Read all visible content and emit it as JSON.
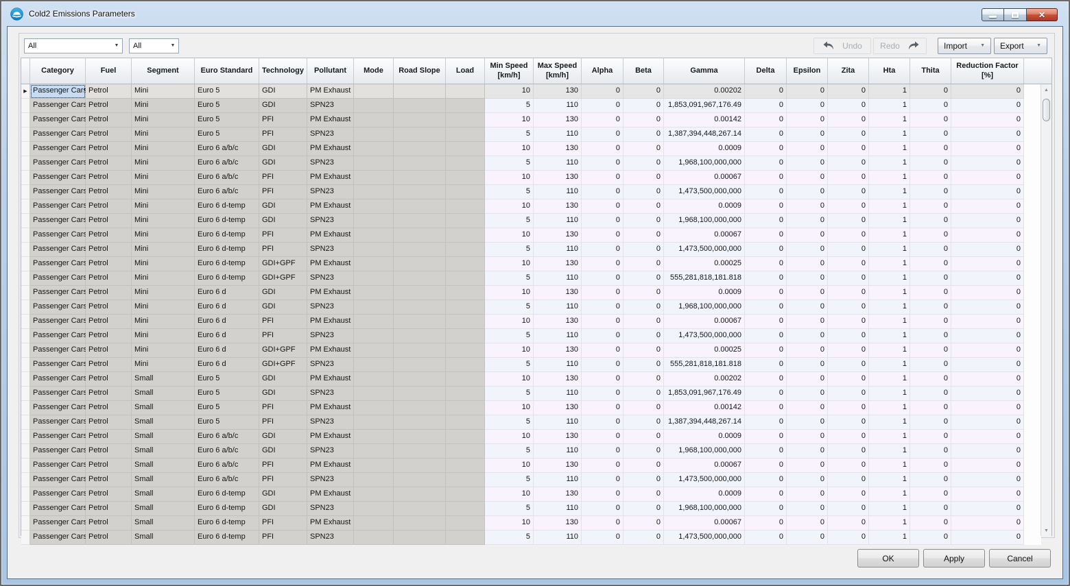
{
  "window": {
    "title": "Cold2 Emissions Parameters"
  },
  "toolbar": {
    "filter1_value": "All",
    "filter2_value": "All",
    "undo_label": "Undo",
    "redo_label": "Redo",
    "import_label": "Import",
    "export_label": "Export"
  },
  "grid": {
    "headers": [
      "Category",
      "Fuel",
      "Segment",
      "Euro Standard",
      "Technology",
      "Pollutant",
      "Mode",
      "Road Slope",
      "Load",
      "Min Speed\n[km/h]",
      "Max Speed\n[km/h]",
      "Alpha",
      "Beta",
      "Gamma",
      "Delta",
      "Epsilon",
      "Zita",
      "Hta",
      "Thita",
      "Reduction Factor\n[%]"
    ],
    "current_row_index": 0,
    "selected_cell": {
      "row": 0,
      "col": 0
    },
    "rows": [
      [
        "Passenger Cars",
        "Petrol",
        "Mini",
        "Euro 5",
        "GDI",
        "PM Exhaust",
        "",
        "",
        "",
        "10",
        "130",
        "0",
        "0",
        "0.00202",
        "0",
        "0",
        "0",
        "1",
        "0",
        "0"
      ],
      [
        "Passenger Cars",
        "Petrol",
        "Mini",
        "Euro 5",
        "GDI",
        "SPN23",
        "",
        "",
        "",
        "5",
        "110",
        "0",
        "0",
        "1,853,091,967,176.49",
        "0",
        "0",
        "0",
        "1",
        "0",
        "0"
      ],
      [
        "Passenger Cars",
        "Petrol",
        "Mini",
        "Euro 5",
        "PFI",
        "PM Exhaust",
        "",
        "",
        "",
        "10",
        "130",
        "0",
        "0",
        "0.00142",
        "0",
        "0",
        "0",
        "1",
        "0",
        "0"
      ],
      [
        "Passenger Cars",
        "Petrol",
        "Mini",
        "Euro 5",
        "PFI",
        "SPN23",
        "",
        "",
        "",
        "5",
        "110",
        "0",
        "0",
        "1,387,394,448,267.14",
        "0",
        "0",
        "0",
        "1",
        "0",
        "0"
      ],
      [
        "Passenger Cars",
        "Petrol",
        "Mini",
        "Euro 6 a/b/c",
        "GDI",
        "PM Exhaust",
        "",
        "",
        "",
        "10",
        "130",
        "0",
        "0",
        "0.0009",
        "0",
        "0",
        "0",
        "1",
        "0",
        "0"
      ],
      [
        "Passenger Cars",
        "Petrol",
        "Mini",
        "Euro 6 a/b/c",
        "GDI",
        "SPN23",
        "",
        "",
        "",
        "5",
        "110",
        "0",
        "0",
        "1,968,100,000,000",
        "0",
        "0",
        "0",
        "1",
        "0",
        "0"
      ],
      [
        "Passenger Cars",
        "Petrol",
        "Mini",
        "Euro 6 a/b/c",
        "PFI",
        "PM Exhaust",
        "",
        "",
        "",
        "10",
        "130",
        "0",
        "0",
        "0.00067",
        "0",
        "0",
        "0",
        "1",
        "0",
        "0"
      ],
      [
        "Passenger Cars",
        "Petrol",
        "Mini",
        "Euro 6 a/b/c",
        "PFI",
        "SPN23",
        "",
        "",
        "",
        "5",
        "110",
        "0",
        "0",
        "1,473,500,000,000",
        "0",
        "0",
        "0",
        "1",
        "0",
        "0"
      ],
      [
        "Passenger Cars",
        "Petrol",
        "Mini",
        "Euro 6 d-temp",
        "GDI",
        "PM Exhaust",
        "",
        "",
        "",
        "10",
        "130",
        "0",
        "0",
        "0.0009",
        "0",
        "0",
        "0",
        "1",
        "0",
        "0"
      ],
      [
        "Passenger Cars",
        "Petrol",
        "Mini",
        "Euro 6 d-temp",
        "GDI",
        "SPN23",
        "",
        "",
        "",
        "5",
        "110",
        "0",
        "0",
        "1,968,100,000,000",
        "0",
        "0",
        "0",
        "1",
        "0",
        "0"
      ],
      [
        "Passenger Cars",
        "Petrol",
        "Mini",
        "Euro 6 d-temp",
        "PFI",
        "PM Exhaust",
        "",
        "",
        "",
        "10",
        "130",
        "0",
        "0",
        "0.00067",
        "0",
        "0",
        "0",
        "1",
        "0",
        "0"
      ],
      [
        "Passenger Cars",
        "Petrol",
        "Mini",
        "Euro 6 d-temp",
        "PFI",
        "SPN23",
        "",
        "",
        "",
        "5",
        "110",
        "0",
        "0",
        "1,473,500,000,000",
        "0",
        "0",
        "0",
        "1",
        "0",
        "0"
      ],
      [
        "Passenger Cars",
        "Petrol",
        "Mini",
        "Euro 6 d-temp",
        "GDI+GPF",
        "PM Exhaust",
        "",
        "",
        "",
        "10",
        "130",
        "0",
        "0",
        "0.00025",
        "0",
        "0",
        "0",
        "1",
        "0",
        "0"
      ],
      [
        "Passenger Cars",
        "Petrol",
        "Mini",
        "Euro 6 d-temp",
        "GDI+GPF",
        "SPN23",
        "",
        "",
        "",
        "5",
        "110",
        "0",
        "0",
        "555,281,818,181.818",
        "0",
        "0",
        "0",
        "1",
        "0",
        "0"
      ],
      [
        "Passenger Cars",
        "Petrol",
        "Mini",
        "Euro 6 d",
        "GDI",
        "PM Exhaust",
        "",
        "",
        "",
        "10",
        "130",
        "0",
        "0",
        "0.0009",
        "0",
        "0",
        "0",
        "1",
        "0",
        "0"
      ],
      [
        "Passenger Cars",
        "Petrol",
        "Mini",
        "Euro 6 d",
        "GDI",
        "SPN23",
        "",
        "",
        "",
        "5",
        "110",
        "0",
        "0",
        "1,968,100,000,000",
        "0",
        "0",
        "0",
        "1",
        "0",
        "0"
      ],
      [
        "Passenger Cars",
        "Petrol",
        "Mini",
        "Euro 6 d",
        "PFI",
        "PM Exhaust",
        "",
        "",
        "",
        "10",
        "130",
        "0",
        "0",
        "0.00067",
        "0",
        "0",
        "0",
        "1",
        "0",
        "0"
      ],
      [
        "Passenger Cars",
        "Petrol",
        "Mini",
        "Euro 6 d",
        "PFI",
        "SPN23",
        "",
        "",
        "",
        "5",
        "110",
        "0",
        "0",
        "1,473,500,000,000",
        "0",
        "0",
        "0",
        "1",
        "0",
        "0"
      ],
      [
        "Passenger Cars",
        "Petrol",
        "Mini",
        "Euro 6 d",
        "GDI+GPF",
        "PM Exhaust",
        "",
        "",
        "",
        "10",
        "130",
        "0",
        "0",
        "0.00025",
        "0",
        "0",
        "0",
        "1",
        "0",
        "0"
      ],
      [
        "Passenger Cars",
        "Petrol",
        "Mini",
        "Euro 6 d",
        "GDI+GPF",
        "SPN23",
        "",
        "",
        "",
        "5",
        "110",
        "0",
        "0",
        "555,281,818,181.818",
        "0",
        "0",
        "0",
        "1",
        "0",
        "0"
      ],
      [
        "Passenger Cars",
        "Petrol",
        "Small",
        "Euro 5",
        "GDI",
        "PM Exhaust",
        "",
        "",
        "",
        "10",
        "130",
        "0",
        "0",
        "0.00202",
        "0",
        "0",
        "0",
        "1",
        "0",
        "0"
      ],
      [
        "Passenger Cars",
        "Petrol",
        "Small",
        "Euro 5",
        "GDI",
        "SPN23",
        "",
        "",
        "",
        "5",
        "110",
        "0",
        "0",
        "1,853,091,967,176.49",
        "0",
        "0",
        "0",
        "1",
        "0",
        "0"
      ],
      [
        "Passenger Cars",
        "Petrol",
        "Small",
        "Euro 5",
        "PFI",
        "PM Exhaust",
        "",
        "",
        "",
        "10",
        "130",
        "0",
        "0",
        "0.00142",
        "0",
        "0",
        "0",
        "1",
        "0",
        "0"
      ],
      [
        "Passenger Cars",
        "Petrol",
        "Small",
        "Euro 5",
        "PFI",
        "SPN23",
        "",
        "",
        "",
        "5",
        "110",
        "0",
        "0",
        "1,387,394,448,267.14",
        "0",
        "0",
        "0",
        "1",
        "0",
        "0"
      ],
      [
        "Passenger Cars",
        "Petrol",
        "Small",
        "Euro 6 a/b/c",
        "GDI",
        "PM Exhaust",
        "",
        "",
        "",
        "10",
        "130",
        "0",
        "0",
        "0.0009",
        "0",
        "0",
        "0",
        "1",
        "0",
        "0"
      ],
      [
        "Passenger Cars",
        "Petrol",
        "Small",
        "Euro 6 a/b/c",
        "GDI",
        "SPN23",
        "",
        "",
        "",
        "5",
        "110",
        "0",
        "0",
        "1,968,100,000,000",
        "0",
        "0",
        "0",
        "1",
        "0",
        "0"
      ],
      [
        "Passenger Cars",
        "Petrol",
        "Small",
        "Euro 6 a/b/c",
        "PFI",
        "PM Exhaust",
        "",
        "",
        "",
        "10",
        "130",
        "0",
        "0",
        "0.00067",
        "0",
        "0",
        "0",
        "1",
        "0",
        "0"
      ],
      [
        "Passenger Cars",
        "Petrol",
        "Small",
        "Euro 6 a/b/c",
        "PFI",
        "SPN23",
        "",
        "",
        "",
        "5",
        "110",
        "0",
        "0",
        "1,473,500,000,000",
        "0",
        "0",
        "0",
        "1",
        "0",
        "0"
      ],
      [
        "Passenger Cars",
        "Petrol",
        "Small",
        "Euro 6 d-temp",
        "GDI",
        "PM Exhaust",
        "",
        "",
        "",
        "10",
        "130",
        "0",
        "0",
        "0.0009",
        "0",
        "0",
        "0",
        "1",
        "0",
        "0"
      ],
      [
        "Passenger Cars",
        "Petrol",
        "Small",
        "Euro 6 d-temp",
        "GDI",
        "SPN23",
        "",
        "",
        "",
        "5",
        "110",
        "0",
        "0",
        "1,968,100,000,000",
        "0",
        "0",
        "0",
        "1",
        "0",
        "0"
      ],
      [
        "Passenger Cars",
        "Petrol",
        "Small",
        "Euro 6 d-temp",
        "PFI",
        "PM Exhaust",
        "",
        "",
        "",
        "10",
        "130",
        "0",
        "0",
        "0.00067",
        "0",
        "0",
        "0",
        "1",
        "0",
        "0"
      ],
      [
        "Passenger Cars",
        "Petrol",
        "Small",
        "Euro 6 d-temp",
        "PFI",
        "SPN23",
        "",
        "",
        "",
        "5",
        "110",
        "0",
        "0",
        "1,473,500,000,000",
        "0",
        "0",
        "0",
        "1",
        "0",
        "0"
      ]
    ]
  },
  "footer": {
    "ok_label": "OK",
    "apply_label": "Apply",
    "cancel_label": "Cancel"
  },
  "colors": {
    "titlebar_blue": "#a8c6e6",
    "readonly_gray": "#d3d1cd",
    "row_alt_lavender": "#f8f3fc",
    "row_alt_blue": "#f1f4fb",
    "current_row_gray": "#e6e6e6",
    "selected_cell_blue": "#c7dbf3",
    "close_button_red": "#c8523a",
    "icon_circle_blue": "#1f97d4"
  }
}
